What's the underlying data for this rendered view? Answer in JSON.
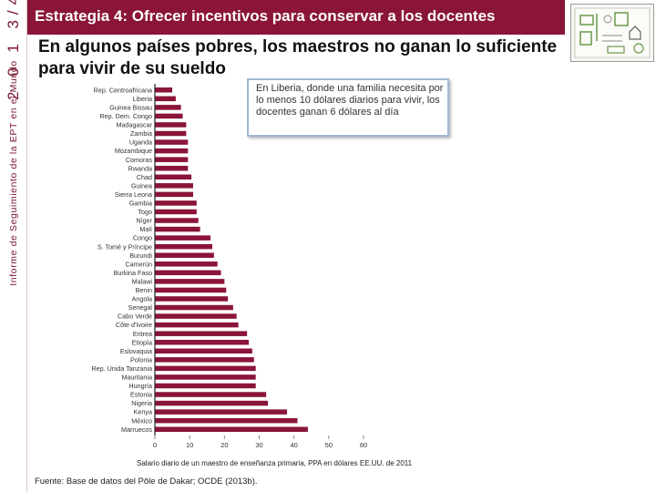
{
  "sidebar": {
    "year_text": "2 0 1 3/4",
    "vertical_text": "Informe de Seguimiento de la EPT en el Mundo"
  },
  "header": {
    "title": "Estrategia 4: Ofrecer incentivos para conservar a los docentes"
  },
  "subtitle": "En algunos países pobres, los maestros no ganan lo suficiente para vivir de su sueldo",
  "callout": {
    "text": "En Liberia, donde una familia necesita por lo menos 10 dólares diarios para vivir, los docentes ganan 6 dólares al día"
  },
  "source": "Fuente: Base de datos del Pôle de Dakar; OCDE (2013b).",
  "chart_data": {
    "type": "bar",
    "orientation": "horizontal",
    "categories": [
      "Rep. Centroafricana",
      "Liberia",
      "Guinea Bissau",
      "Rep. Dem. Congo",
      "Madagascar",
      "Zambia",
      "Uganda",
      "Mozambique",
      "Comoras",
      "Rwanda",
      "Chad",
      "Guinea",
      "Sierra Leona",
      "Gambia",
      "Togo",
      "Níger",
      "Malí",
      "Congo",
      "S. Tomé y Príncipe",
      "Burundi",
      "Camerún",
      "Burkina Faso",
      "Malawi",
      "Benin",
      "Angola",
      "Senegal",
      "Cabo Verde",
      "Côte d'Ivoire",
      "Eritrea",
      "Etiopía",
      "Eslovaquia",
      "Polonia",
      "Rep. Unida Tanzania",
      "Mauritania",
      "Hungría",
      "Estonia",
      "Nigeria",
      "Kenya",
      "México",
      "Marruecos"
    ],
    "values": [
      5,
      6,
      7.5,
      8,
      9,
      9,
      9.5,
      9.5,
      9.5,
      9.5,
      10.5,
      11,
      11,
      12,
      12,
      12.5,
      13,
      16,
      16.5,
      17,
      18,
      19,
      20,
      20.5,
      21,
      22.5,
      23.5,
      24,
      26.5,
      27,
      28,
      28.5,
      29,
      29,
      29,
      32,
      32.5,
      38,
      41,
      44
    ],
    "xlim": [
      0,
      60
    ],
    "xticks": [
      "0",
      "10",
      "20",
      "30",
      "40",
      "50",
      "60"
    ],
    "xlabel": "Salario diario de un maestro de enseñanza primaria, PPA en dólares EE.UU. de 2011",
    "bar_color": "#8a1538"
  }
}
